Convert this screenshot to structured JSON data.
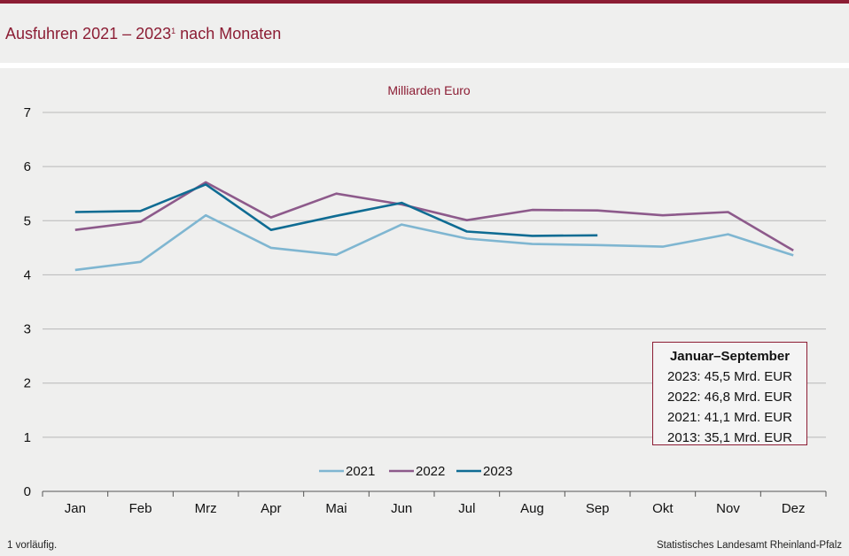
{
  "header": {
    "title": "Ausfuhren 2021 – 2023",
    "title_sup": "1",
    "title_rest": " nach Monaten",
    "accent_color": "#8c1d34"
  },
  "chart_data": {
    "type": "line",
    "title": "Milliarden Euro",
    "categories": [
      "Jan",
      "Feb",
      "Mrz",
      "Apr",
      "Mai",
      "Jun",
      "Jul",
      "Aug",
      "Sep",
      "Okt",
      "Nov",
      "Dez"
    ],
    "ylim": [
      0,
      7
    ],
    "yticks": [
      0,
      1,
      2,
      3,
      4,
      5,
      6,
      7
    ],
    "grid": true,
    "legend_position": "bottom-center",
    "series": [
      {
        "name": "2021",
        "color": "#7fb6d1",
        "values": [
          4.09,
          4.24,
          5.1,
          4.5,
          4.37,
          4.93,
          4.67,
          4.57,
          4.55,
          4.52,
          4.75,
          4.36
        ]
      },
      {
        "name": "2022",
        "color": "#8d5a8b",
        "values": [
          4.83,
          4.98,
          5.71,
          5.06,
          5.5,
          5.3,
          5.01,
          5.2,
          5.19,
          5.1,
          5.16,
          4.45
        ]
      },
      {
        "name": "2023",
        "color": "#0f6c93",
        "values": [
          5.16,
          5.18,
          5.67,
          4.83,
          5.09,
          5.33,
          4.8,
          4.72,
          4.73,
          null,
          null,
          null
        ]
      }
    ]
  },
  "summary_box": {
    "heading": "Januar–September",
    "lines": [
      "2023: 45,5 Mrd. EUR",
      "2022: 46,8 Mrd. EUR",
      "2021: 41,1 Mrd. EUR",
      "2013: 35,1 Mrd. EUR"
    ]
  },
  "footer": {
    "footnote": "1 vorläufig.",
    "source": "Statistisches Landesamt Rheinland-Pfalz"
  }
}
